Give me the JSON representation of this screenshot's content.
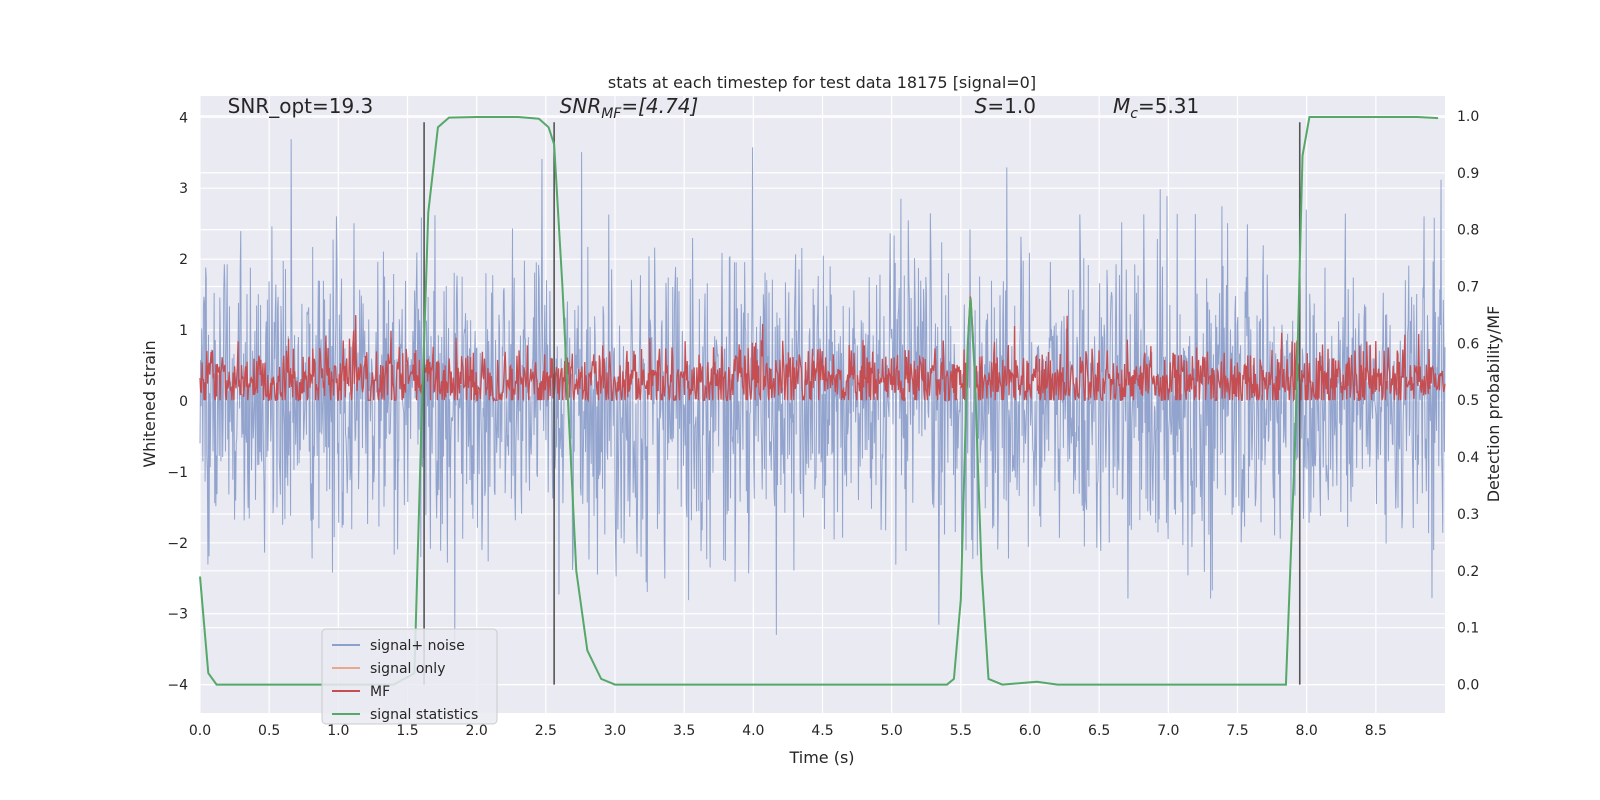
{
  "chart_data": {
    "type": "line",
    "title": "stats at each timestep for test data 18175 [signal=0]",
    "xlabel": "Time (s)",
    "ylabel_left": "Whitened strain",
    "ylabel_right": "Detection probability/MF",
    "xlim": [
      0.0,
      9.0
    ],
    "ylim_left": [
      -4.4,
      4.3
    ],
    "ylim_right": [
      -0.05,
      1.035
    ],
    "x_ticks": [
      0.0,
      0.5,
      1.0,
      1.5,
      2.0,
      2.5,
      3.0,
      3.5,
      4.0,
      4.5,
      5.0,
      5.5,
      6.0,
      6.5,
      7.0,
      7.5,
      8.0,
      8.5
    ],
    "x_tick_labels": [
      "0.0",
      "0.5",
      "1.0",
      "1.5",
      "2.0",
      "2.5",
      "3.0",
      "3.5",
      "4.0",
      "4.5",
      "5.0",
      "5.5",
      "6.0",
      "6.5",
      "7.0",
      "7.5",
      "8.0",
      "8.5"
    ],
    "y_ticks_left": [
      4,
      3,
      2,
      1,
      0,
      -1,
      -2,
      -3,
      -4
    ],
    "y_tick_labels_left": [
      "4",
      "3",
      "2",
      "1",
      "0",
      "−1",
      "−2",
      "−3",
      "−4"
    ],
    "y_ticks_right": [
      1.0,
      0.9,
      0.8,
      0.7,
      0.6,
      0.5,
      0.4,
      0.3,
      0.2,
      0.1,
      0.0
    ],
    "y_tick_labels_right": [
      "1.0",
      "0.9",
      "0.8",
      "0.7",
      "0.6",
      "0.5",
      "0.4",
      "0.3",
      "0.2",
      "0.1",
      "0.0"
    ],
    "grid": true,
    "legend_position": "lower-left",
    "annotations": [
      {
        "label": "SNR_opt=19.3",
        "x": 0.2,
        "y_right": 1.005
      },
      {
        "label": "SNR",
        "sub": "MF",
        "after": "=[4.74]",
        "italic": true,
        "x": 2.6,
        "y_right": 1.005
      },
      {
        "label": "S",
        "after": "=1.0",
        "italic": true,
        "x": 5.6,
        "y_right": 1.005
      },
      {
        "label": "M",
        "sub": "c",
        "after": "=5.31",
        "italic": true,
        "x": 6.6,
        "y_right": 1.005
      }
    ],
    "vertical_markers": [
      1.62,
      2.56,
      7.95
    ],
    "series": [
      {
        "name": "signal+ noise",
        "axis": "left",
        "color": "#8da0cb",
        "description": "whitened strain noise, |amplitude| up to ~4",
        "noise_std": 1.05,
        "samples": 2200
      },
      {
        "name": "signal only",
        "axis": "left",
        "color": "#e8a88e",
        "x": [],
        "y": []
      },
      {
        "name": "MF",
        "axis": "right",
        "color": "#c44e52",
        "mean": 0.535,
        "spread": 0.03,
        "peaks": [
          {
            "x": 0.08,
            "y": 0.585
          },
          {
            "x": 5.57,
            "y": 0.69
          }
        ],
        "samples": 1800
      },
      {
        "name": "signal statistics",
        "axis": "right",
        "color": "#55a868",
        "x": [
          0.0,
          0.06,
          0.12,
          0.2,
          0.5,
          1.0,
          1.4,
          1.55,
          1.6,
          1.65,
          1.72,
          1.8,
          2.0,
          2.3,
          2.45,
          2.52,
          2.56,
          2.62,
          2.72,
          2.8,
          2.9,
          3.0,
          4.0,
          5.0,
          5.4,
          5.45,
          5.5,
          5.55,
          5.57,
          5.6,
          5.65,
          5.7,
          5.8,
          6.05,
          6.2,
          7.0,
          7.85,
          7.92,
          7.97,
          8.02,
          8.2,
          8.8,
          8.95
        ],
        "y": [
          0.19,
          0.02,
          0.0,
          0.0,
          0.0,
          0.0,
          0.0,
          0.02,
          0.45,
          0.83,
          0.98,
          0.997,
          0.998,
          0.998,
          0.995,
          0.98,
          0.95,
          0.7,
          0.2,
          0.06,
          0.01,
          0.0,
          0.0,
          0.0,
          0.0,
          0.01,
          0.15,
          0.6,
          0.68,
          0.55,
          0.2,
          0.01,
          0.0,
          0.005,
          0.0,
          0.0,
          0.0,
          0.45,
          0.93,
          0.998,
          0.998,
          0.998,
          0.996
        ]
      }
    ]
  }
}
